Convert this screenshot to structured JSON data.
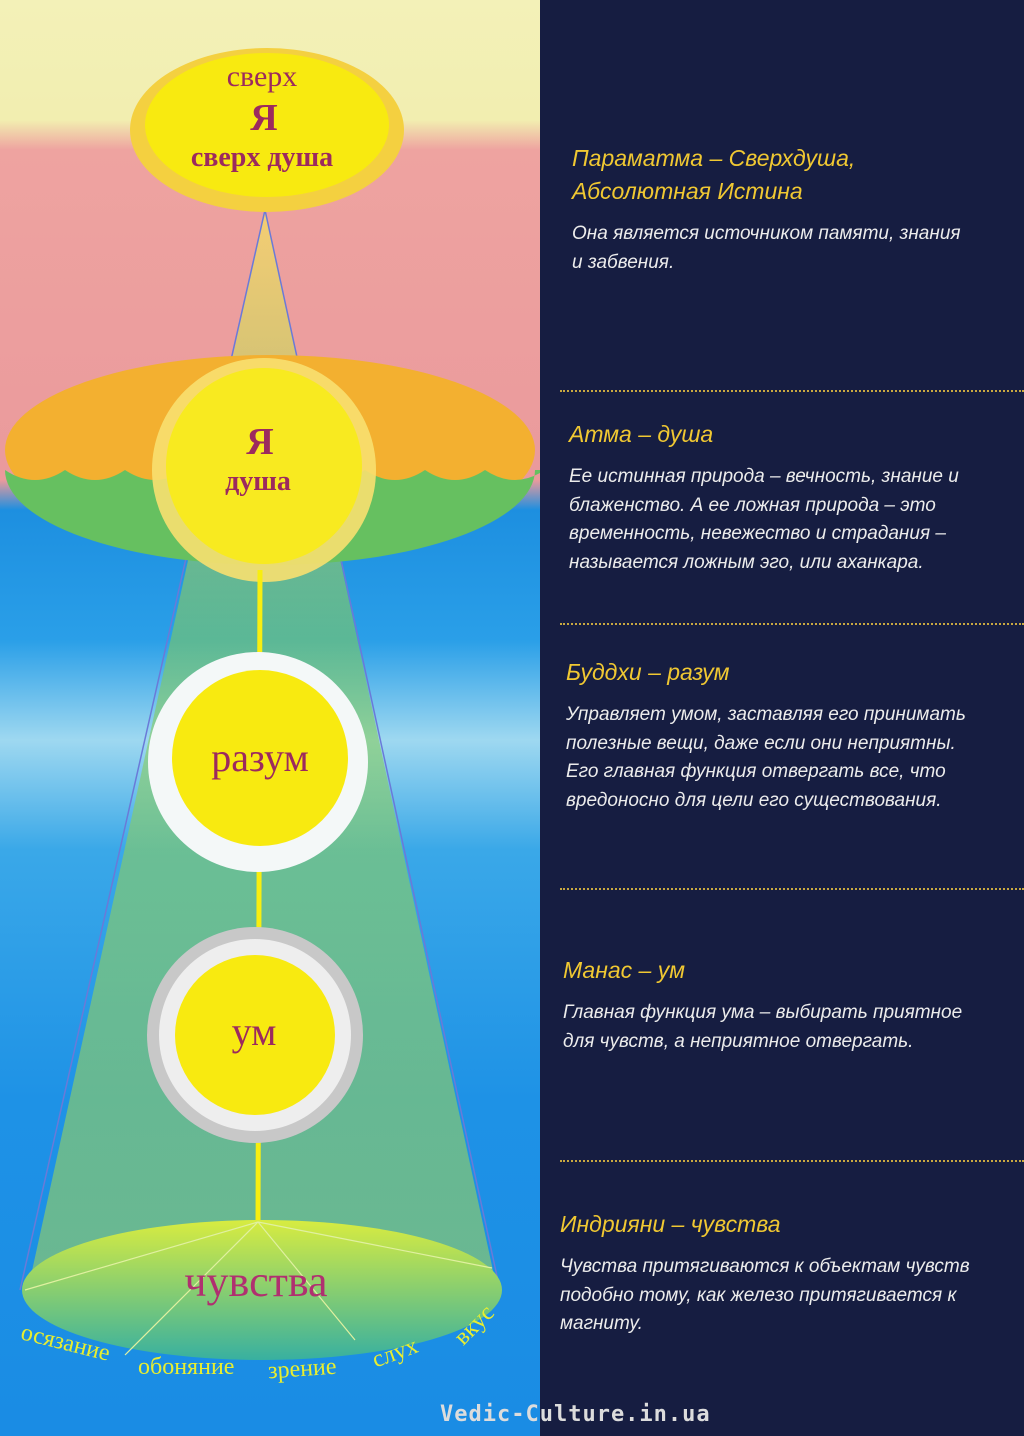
{
  "diagram": {
    "supersoul": {
      "line1": "сверх",
      "line2": "Я",
      "line3": "сверх душа"
    },
    "soul": {
      "line1": "Я",
      "line2": "душа"
    },
    "intellect": "разум",
    "mind": "ум",
    "senses": "чувства",
    "sense_list": [
      "осязание",
      "обоняние",
      "зрение",
      "слух",
      "вкус"
    ]
  },
  "sections": [
    {
      "title": "Параматма – Сверхдуша, Абсолютная Истина",
      "text": "Она является источником памяти, знания и забвения."
    },
    {
      "title": "Атма – душа",
      "text": "Ее истинная природа – вечность, знание и блаженство. А ее ложная природа – это временность, невежество и страдания – называется ложным эго, или аханкара."
    },
    {
      "title": "Буддхи – разум",
      "text": "Управляет умом, заставляя его принимать полезные вещи, даже если они неприятны. Его главная функция отвергать все, что вредоносно для цели его существования."
    },
    {
      "title": "Манас – ум",
      "text": "Главная функция ума – выбирать приятное для чувств, а неприятное отвергать."
    },
    {
      "title": "Индрияни – чувства",
      "text": "Чувства притягиваются к объектам чувств подобно тому, как железо притягивается к магниту."
    }
  ],
  "watermark": "Vedic-Culture.in.ua",
  "colors": {
    "navy": "#161d41",
    "gold": "#f0c832",
    "label": "#9c2a5e",
    "yellow": "#f8ee10"
  }
}
